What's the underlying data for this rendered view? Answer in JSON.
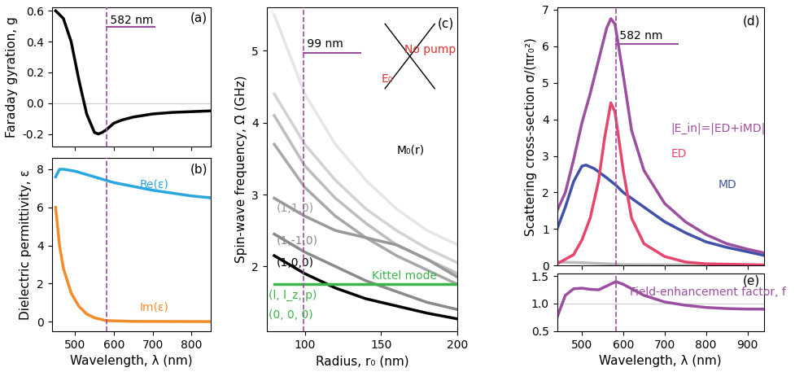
{
  "chart_data": [
    {
      "type": "line",
      "panel": "(a)",
      "ylabel": "Faraday gyration, g",
      "xlim": [
        440,
        850
      ],
      "ylim": [
        -0.28,
        0.62
      ],
      "xticks": [
        500,
        600,
        700,
        800
      ],
      "yticks": [
        -0.2,
        {
          "value": 0,
          "label": "0.0"
        },
        0.2,
        0.4,
        0.6
      ],
      "tick_labels": "y",
      "hlines": [
        0
      ],
      "vlines": [
        {
          "x": 582,
          "label": "582 nm"
        }
      ],
      "series": [
        {
          "color": "#000000",
          "x": [
            450,
            470,
            490,
            510,
            530,
            550,
            560,
            570,
            582,
            600,
            620,
            650,
            700,
            750,
            800,
            850
          ],
          "values": [
            0.6,
            0.55,
            0.4,
            0.15,
            -0.07,
            -0.19,
            -0.2,
            -0.19,
            -0.17,
            -0.13,
            -0.11,
            -0.09,
            -0.07,
            -0.06,
            -0.055,
            -0.05
          ]
        }
      ]
    },
    {
      "type": "line",
      "panel": "(b)",
      "ylabel": "Dielectric permittivity, ε",
      "xlabel": "Wavelength, λ (nm)",
      "xlim": [
        440,
        850
      ],
      "ylim": [
        -0.5,
        8.6
      ],
      "xticks": [
        500,
        600,
        700,
        800
      ],
      "yticks": [
        0,
        2,
        4,
        6,
        8
      ],
      "vlines": [
        {
          "x": 582
        }
      ],
      "series": [
        {
          "name": "Re(ε)",
          "color": "#2aa7df",
          "x": [
            450,
            460,
            470,
            500,
            550,
            600,
            650,
            700,
            750,
            800,
            850
          ],
          "values": [
            7.6,
            8.0,
            8.0,
            7.9,
            7.6,
            7.3,
            7.1,
            6.9,
            6.75,
            6.6,
            6.5
          ]
        },
        {
          "name": "Im(ε)",
          "color": "#f28c28",
          "x": [
            450,
            460,
            470,
            490,
            510,
            530,
            550,
            580,
            650,
            850
          ],
          "values": [
            6.0,
            4.0,
            2.8,
            1.5,
            0.8,
            0.4,
            0.2,
            0.05,
            0.01,
            0.0
          ]
        }
      ]
    },
    {
      "type": "line",
      "panel": "(c)",
      "ylabel": "Spin-wave frequency, Ω̃ (GHz)",
      "xlabel": "Radius, r₀ (nm)",
      "xlim": [
        75,
        200
      ],
      "ylim": [
        1.1,
        5.6
      ],
      "xticks": [
        100,
        150,
        200
      ],
      "yticks": [
        2,
        3,
        4,
        5
      ],
      "vlines": [
        {
          "x": 99,
          "label": "99 nm"
        }
      ],
      "annotations": [
        "No pump",
        "E₀",
        "M₀(r)",
        "(l, l_z, p)",
        "(0, 0, 0)"
      ],
      "series": [
        {
          "color": "#e6e6e6",
          "x": [
            80,
            100,
            120,
            140,
            160,
            180,
            200
          ],
          "values": [
            5.5,
            4.4,
            3.7,
            3.2,
            2.8,
            2.5,
            2.3
          ]
        },
        {
          "color": "#d2d2d2",
          "x": [
            80,
            100,
            120,
            140,
            160,
            180,
            200
          ],
          "values": [
            4.4,
            3.7,
            3.2,
            2.8,
            2.5,
            2.25,
            2.05
          ]
        },
        {
          "color": "#bdbdbd",
          "x": [
            80,
            100,
            120,
            140,
            160,
            180,
            200
          ],
          "values": [
            4.1,
            3.4,
            2.95,
            2.6,
            2.3,
            2.1,
            1.9
          ]
        },
        {
          "color": "#a8a8a8",
          "x": [
            80,
            100,
            120,
            140,
            160,
            180,
            200
          ],
          "values": [
            3.7,
            3.1,
            2.7,
            2.4,
            2.15,
            1.95,
            1.75
          ]
        },
        {
          "name": "(1,1,0)",
          "color": "#999999",
          "x": [
            80,
            100,
            120,
            140,
            160,
            180,
            200
          ],
          "values": [
            2.95,
            2.7,
            2.5,
            2.4,
            2.3,
            2.1,
            1.85
          ]
        },
        {
          "name": "(1,-1,0)",
          "color": "#8a8a8a",
          "x": [
            80,
            100,
            120,
            140,
            160,
            180,
            200
          ],
          "values": [
            2.45,
            2.2,
            2.0,
            1.8,
            1.65,
            1.5,
            1.4
          ]
        },
        {
          "name": "(1,0,0)",
          "color": "#000000",
          "x": [
            80,
            100,
            120,
            140,
            160,
            180,
            200
          ],
          "values": [
            2.15,
            1.9,
            1.7,
            1.55,
            1.45,
            1.35,
            1.27
          ]
        },
        {
          "name": "Kittel mode",
          "color": "#3cb44b",
          "x": [
            80,
            200
          ],
          "values": [
            1.75,
            1.75
          ]
        }
      ]
    },
    {
      "type": "line",
      "panel": "(d)",
      "ylabel": "Scattering cross-section σ/(πr₀²)",
      "xlim": [
        440,
        940
      ],
      "ylim": [
        0,
        7.05
      ],
      "xticks": [
        500,
        600,
        700,
        800,
        900
      ],
      "yticks": [
        0,
        1,
        2,
        3,
        4,
        5,
        6,
        7
      ],
      "tick_labels": "y",
      "vlines": [
        {
          "x": 582,
          "label": "582 nm"
        }
      ],
      "series": [
        {
          "color": "#bbbbbb",
          "x": [
            440,
            500,
            600,
            940
          ],
          "values": [
            0.1,
            0.08,
            0.03,
            0.01
          ]
        },
        {
          "name": "MD",
          "color": "#3f51a8",
          "x": [
            440,
            460,
            480,
            500,
            510,
            530,
            560,
            582,
            600,
            650,
            700,
            750,
            800,
            850,
            900,
            940
          ],
          "values": [
            1.0,
            1.6,
            2.3,
            2.72,
            2.75,
            2.65,
            2.4,
            2.2,
            2.0,
            1.6,
            1.2,
            0.9,
            0.65,
            0.5,
            0.38,
            0.28
          ]
        },
        {
          "name": "ED",
          "color": "#e6466e",
          "x": [
            440,
            480,
            500,
            520,
            540,
            555,
            570,
            580,
            600,
            620,
            650,
            700,
            750,
            800,
            940
          ],
          "values": [
            0.05,
            0.3,
            0.7,
            1.3,
            2.3,
            3.5,
            4.45,
            4.2,
            2.6,
            1.3,
            0.6,
            0.25,
            0.1,
            0.05,
            0.02
          ]
        },
        {
          "name": "|E_in|=|ED+iMD|",
          "color": "#9b4f9f",
          "x": [
            440,
            460,
            480,
            500,
            520,
            540,
            560,
            570,
            580,
            600,
            620,
            650,
            700,
            750,
            800,
            850,
            900,
            940
          ],
          "values": [
            1.5,
            2.0,
            2.9,
            3.9,
            4.7,
            5.6,
            6.5,
            6.75,
            6.6,
            5.2,
            3.7,
            2.6,
            1.7,
            1.2,
            0.85,
            0.6,
            0.45,
            0.35
          ]
        }
      ]
    },
    {
      "type": "line",
      "panel": "(e)",
      "xlabel": "Wavelength, λ (nm)",
      "xlim": [
        440,
        940
      ],
      "ylim": [
        0.5,
        1.55
      ],
      "xticks": [
        500,
        600,
        700,
        800,
        900
      ],
      "yticks": [
        0.5,
        {
          "value": 1,
          "label": "1.0"
        },
        1.5
      ],
      "hlines": [
        1
      ],
      "vlines": [
        {
          "x": 582
        }
      ],
      "series": [
        {
          "name": "Field-enhancement factor, f",
          "color": "#9b4f9f",
          "x": [
            440,
            460,
            480,
            500,
            520,
            540,
            560,
            582,
            600,
            650,
            700,
            750,
            800,
            850,
            900,
            940
          ],
          "values": [
            0.75,
            1.15,
            1.27,
            1.28,
            1.26,
            1.25,
            1.32,
            1.4,
            1.35,
            1.15,
            1.03,
            0.97,
            0.93,
            0.91,
            0.9,
            0.9
          ]
        }
      ]
    }
  ]
}
